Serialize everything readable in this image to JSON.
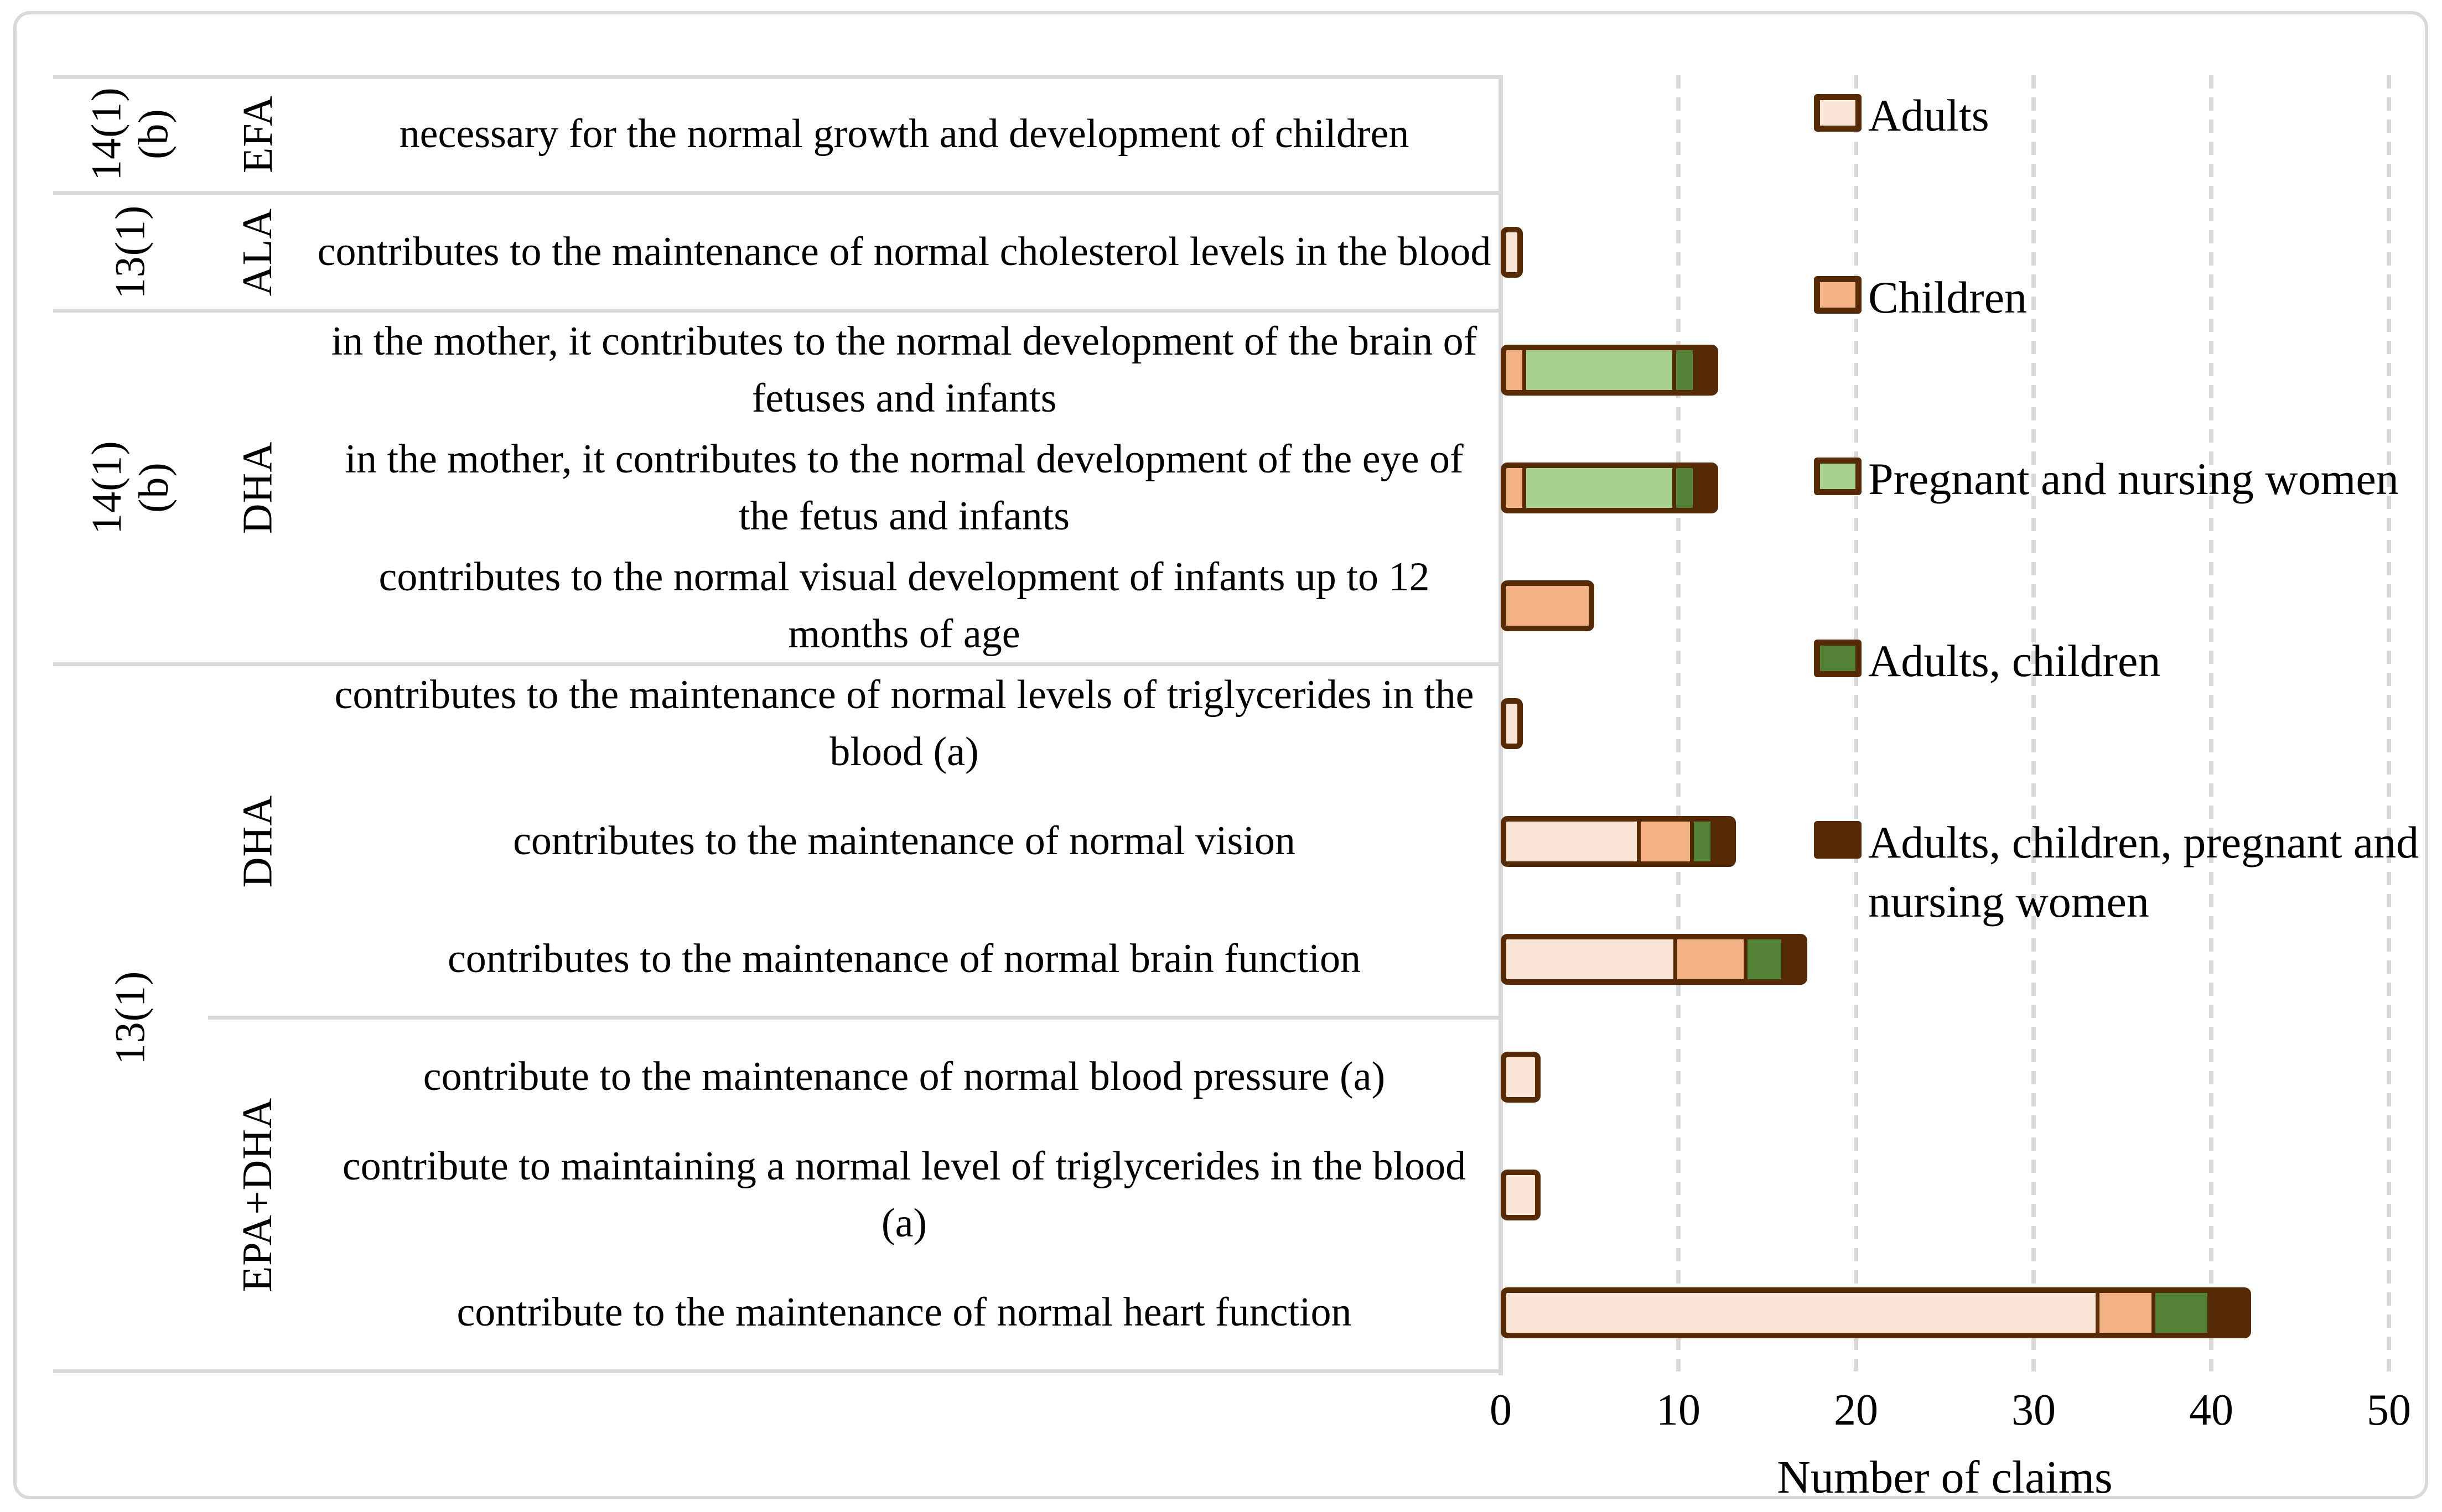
{
  "figure": {
    "xlabel": "Number of claims"
  },
  "table": {
    "statute_labels": [
      {
        "label": "14(1)\n(b)",
        "row": 1,
        "span": 1
      },
      {
        "label": "13(1)",
        "row": 2,
        "span": 1
      },
      {
        "label": "14(1) (b)",
        "row": 3,
        "span": 3
      },
      {
        "label": "13(1)",
        "row": 6,
        "span": 6
      }
    ],
    "nutrient_labels": [
      {
        "label": "EFA",
        "row": 1,
        "span": 1
      },
      {
        "label": "ALA",
        "row": 2,
        "span": 1
      },
      {
        "label": "DHA",
        "row": 3,
        "span": 3
      },
      {
        "label": "DHA",
        "row": 6,
        "span": 3
      },
      {
        "label": "EPA+DHA",
        "row": 9,
        "span": 3
      }
    ],
    "claims": [
      "necessary for the normal growth and development of children",
      "contributes to the maintenance of normal cholesterol levels in the blood",
      "in the mother, it contributes to the normal development of the brain of fetuses and infants",
      "in the mother, it contributes to the normal development of the eye of the fetus and infants",
      "contributes to the normal visual development of infants up to 12 months of age",
      "contributes to the maintenance of normal levels of triglycerides in the blood (a)",
      "contributes to the maintenance of normal vision",
      "contributes to the maintenance of normal brain function",
      "contribute to the maintenance of normal blood pressure (a)",
      "contribute to maintaining a normal level of triglycerides in the blood (a)",
      "contribute to the maintenance of normal heart function"
    ]
  },
  "legend": {
    "items": [
      {
        "label": "Adults",
        "color": "#FBE5D6"
      },
      {
        "label": "Children",
        "color": "#F4B183"
      },
      {
        "label": "Pregnant and nursing women",
        "color": "#A9D18E"
      },
      {
        "label": "Adults, children",
        "color": "#538135"
      },
      {
        "label": "Adults, children, pregnant and\nnursing women",
        "color": "#552A05"
      }
    ]
  },
  "colors": {
    "bar_border": "#552A05",
    "grid_gray": "#D9D9D9",
    "background": "#FFFFFF"
  },
  "chart_data": {
    "type": "bar",
    "stacked": true,
    "orientation": "horizontal",
    "title": "",
    "xlabel": "Number of claims",
    "ylabel": "",
    "xlim": [
      0,
      50
    ],
    "xticks": [
      0,
      10,
      20,
      30,
      40,
      50
    ],
    "grid": "vertical dashed",
    "legend_position": "top-right",
    "categories": [
      "necessary for the normal growth and development of children",
      "contributes to the maintenance of normal cholesterol levels in the blood",
      "in the mother, it contributes to the normal development of the brain of fetuses and infants",
      "in the mother, it contributes to the normal development of the eye of the fetus and infants",
      "contributes to the normal visual development of infants up to 12 months of age",
      "contributes to the maintenance of normal levels of triglycerides in the blood (a)",
      "contributes to the maintenance of normal vision",
      "contributes to the maintenance of normal brain function",
      "contribute to the maintenance of normal blood pressure (a)",
      "contribute to maintaining a normal level of triglycerides in the blood (a)",
      "contribute to the maintenance of normal heart function"
    ],
    "series": [
      {
        "name": "Adults",
        "color": "#FBE5D6",
        "values": [
          0,
          1,
          0,
          0,
          0,
          1,
          8,
          10,
          2,
          2,
          34
        ]
      },
      {
        "name": "Children",
        "color": "#F4B183",
        "values": [
          0,
          0,
          1,
          1,
          5,
          0,
          3,
          4,
          0,
          0,
          3
        ]
      },
      {
        "name": "Pregnant and nursing women",
        "color": "#A9D18E",
        "values": [
          0,
          0,
          9,
          9,
          0,
          0,
          0,
          0,
          0,
          0,
          0
        ]
      },
      {
        "name": "Adults, children",
        "color": "#538135",
        "values": [
          0,
          0,
          1,
          1,
          0,
          0,
          1,
          2,
          0,
          0,
          3
        ]
      },
      {
        "name": "Adults, children, pregnant and nursing women",
        "color": "#552A05",
        "values": [
          0,
          0,
          1,
          1,
          0,
          0,
          1,
          1,
          0,
          0,
          2
        ]
      }
    ],
    "totals": [
      0,
      1,
      12,
      12,
      5,
      1,
      13,
      17,
      2,
      2,
      42
    ]
  }
}
